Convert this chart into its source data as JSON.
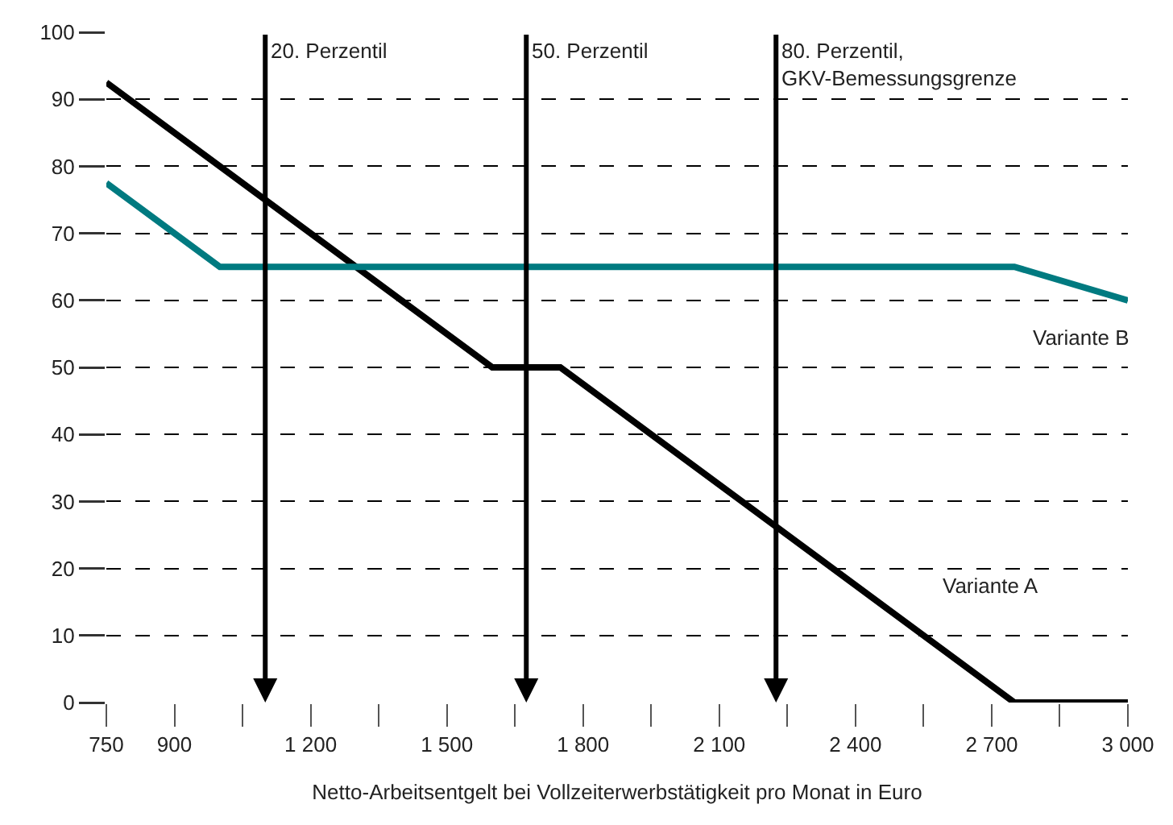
{
  "chart_data": {
    "type": "line",
    "xlabel": "Netto-Arbeitsentgelt bei Vollzeiterwerbstätigkeit pro Monat in Euro",
    "xlim": [
      750,
      3000
    ],
    "xticks": [
      {
        "value": 750,
        "label": "750"
      },
      {
        "value": 900,
        "label": "900"
      },
      {
        "value": 1050,
        "label": null
      },
      {
        "value": 1200,
        "label": "1 200"
      },
      {
        "value": 1350,
        "label": null
      },
      {
        "value": 1500,
        "label": "1 500"
      },
      {
        "value": 1650,
        "label": null
      },
      {
        "value": 1800,
        "label": "1 800"
      },
      {
        "value": 1950,
        "label": null
      },
      {
        "value": 2100,
        "label": "2 100"
      },
      {
        "value": 2250,
        "label": null
      },
      {
        "value": 2400,
        "label": "2 400"
      },
      {
        "value": 2550,
        "label": null
      },
      {
        "value": 2700,
        "label": "2 700"
      },
      {
        "value": 2850,
        "label": null
      },
      {
        "value": 3000,
        "label": "3 000"
      }
    ],
    "ylim": [
      0,
      100
    ],
    "yticks": [
      0,
      10,
      20,
      30,
      40,
      50,
      60,
      70,
      80,
      90,
      100
    ],
    "grid": "y",
    "legend": false,
    "marker": "none",
    "line_style": "solid",
    "series": [
      {
        "name": "Variante A",
        "color": "#000000",
        "x": [
          750,
          1600,
          1750,
          2750,
          3000
        ],
        "values": [
          92.5,
          50,
          50,
          0,
          0
        ]
      },
      {
        "name": "Variante B",
        "color": "#007a80",
        "x": [
          750,
          1000,
          2750,
          2800,
          3000
        ],
        "values": [
          77.5,
          65,
          65,
          64,
          60
        ]
      }
    ],
    "ref_lines": [
      {
        "axis": "x",
        "value": 1100,
        "label": "20. Perzentil",
        "color": "#000000"
      },
      {
        "axis": "x",
        "value": 1675,
        "label": "50. Perzentil",
        "color": "#000000"
      },
      {
        "axis": "x",
        "value": 2225,
        "label": "80. Perzentil,\nGKV-Bemessungsgrenze",
        "color": "#000000"
      }
    ]
  }
}
